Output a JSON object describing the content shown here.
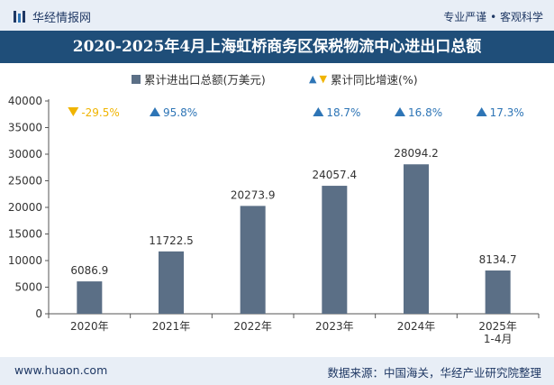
{
  "header": {
    "brand": "华经情报网",
    "tagline": "专业严谨 • 客观科学"
  },
  "title": "2020-2025年4月上海虹桥商务区保税物流中心进出口总额",
  "legend": {
    "bar_label": "累计进出口总额(万美元)",
    "growth_label": "累计同比增速(%)"
  },
  "footer": {
    "website": "www.huaon.com",
    "source": "数据来源：中国海关，华经产业研究院整理"
  },
  "colors": {
    "bar": "#5b6f86",
    "up": "#2e75b6",
    "down": "#f0b400",
    "header_band": "#1f4e79"
  },
  "chart_data": {
    "type": "bar",
    "categories": [
      "2020年",
      "2021年",
      "2022年",
      "2023年",
      "2024年",
      "2025年\n1-4月"
    ],
    "series": [
      {
        "name": "累计进出口总额(万美元)",
        "values": [
          6086.9,
          11722.5,
          20273.9,
          24057.4,
          28094.2,
          8134.7
        ]
      },
      {
        "name": "累计同比增速(%)",
        "values": [
          -29.5,
          95.8,
          null,
          18.7,
          16.8,
          17.3
        ]
      }
    ],
    "value_labels": [
      "6086.9",
      "11722.5",
      "20273.9",
      "24057.4",
      "28094.2",
      "8134.7"
    ],
    "growth_labels": [
      "-29.5%",
      "95.8%",
      "",
      "18.7%",
      "16.8%",
      "17.3%"
    ],
    "yticks": [
      "0",
      "5000",
      "10000",
      "15000",
      "20000",
      "25000",
      "30000",
      "35000",
      "40000"
    ],
    "ylim": [
      0,
      40000
    ],
    "grid": false,
    "legend_position": "top"
  }
}
